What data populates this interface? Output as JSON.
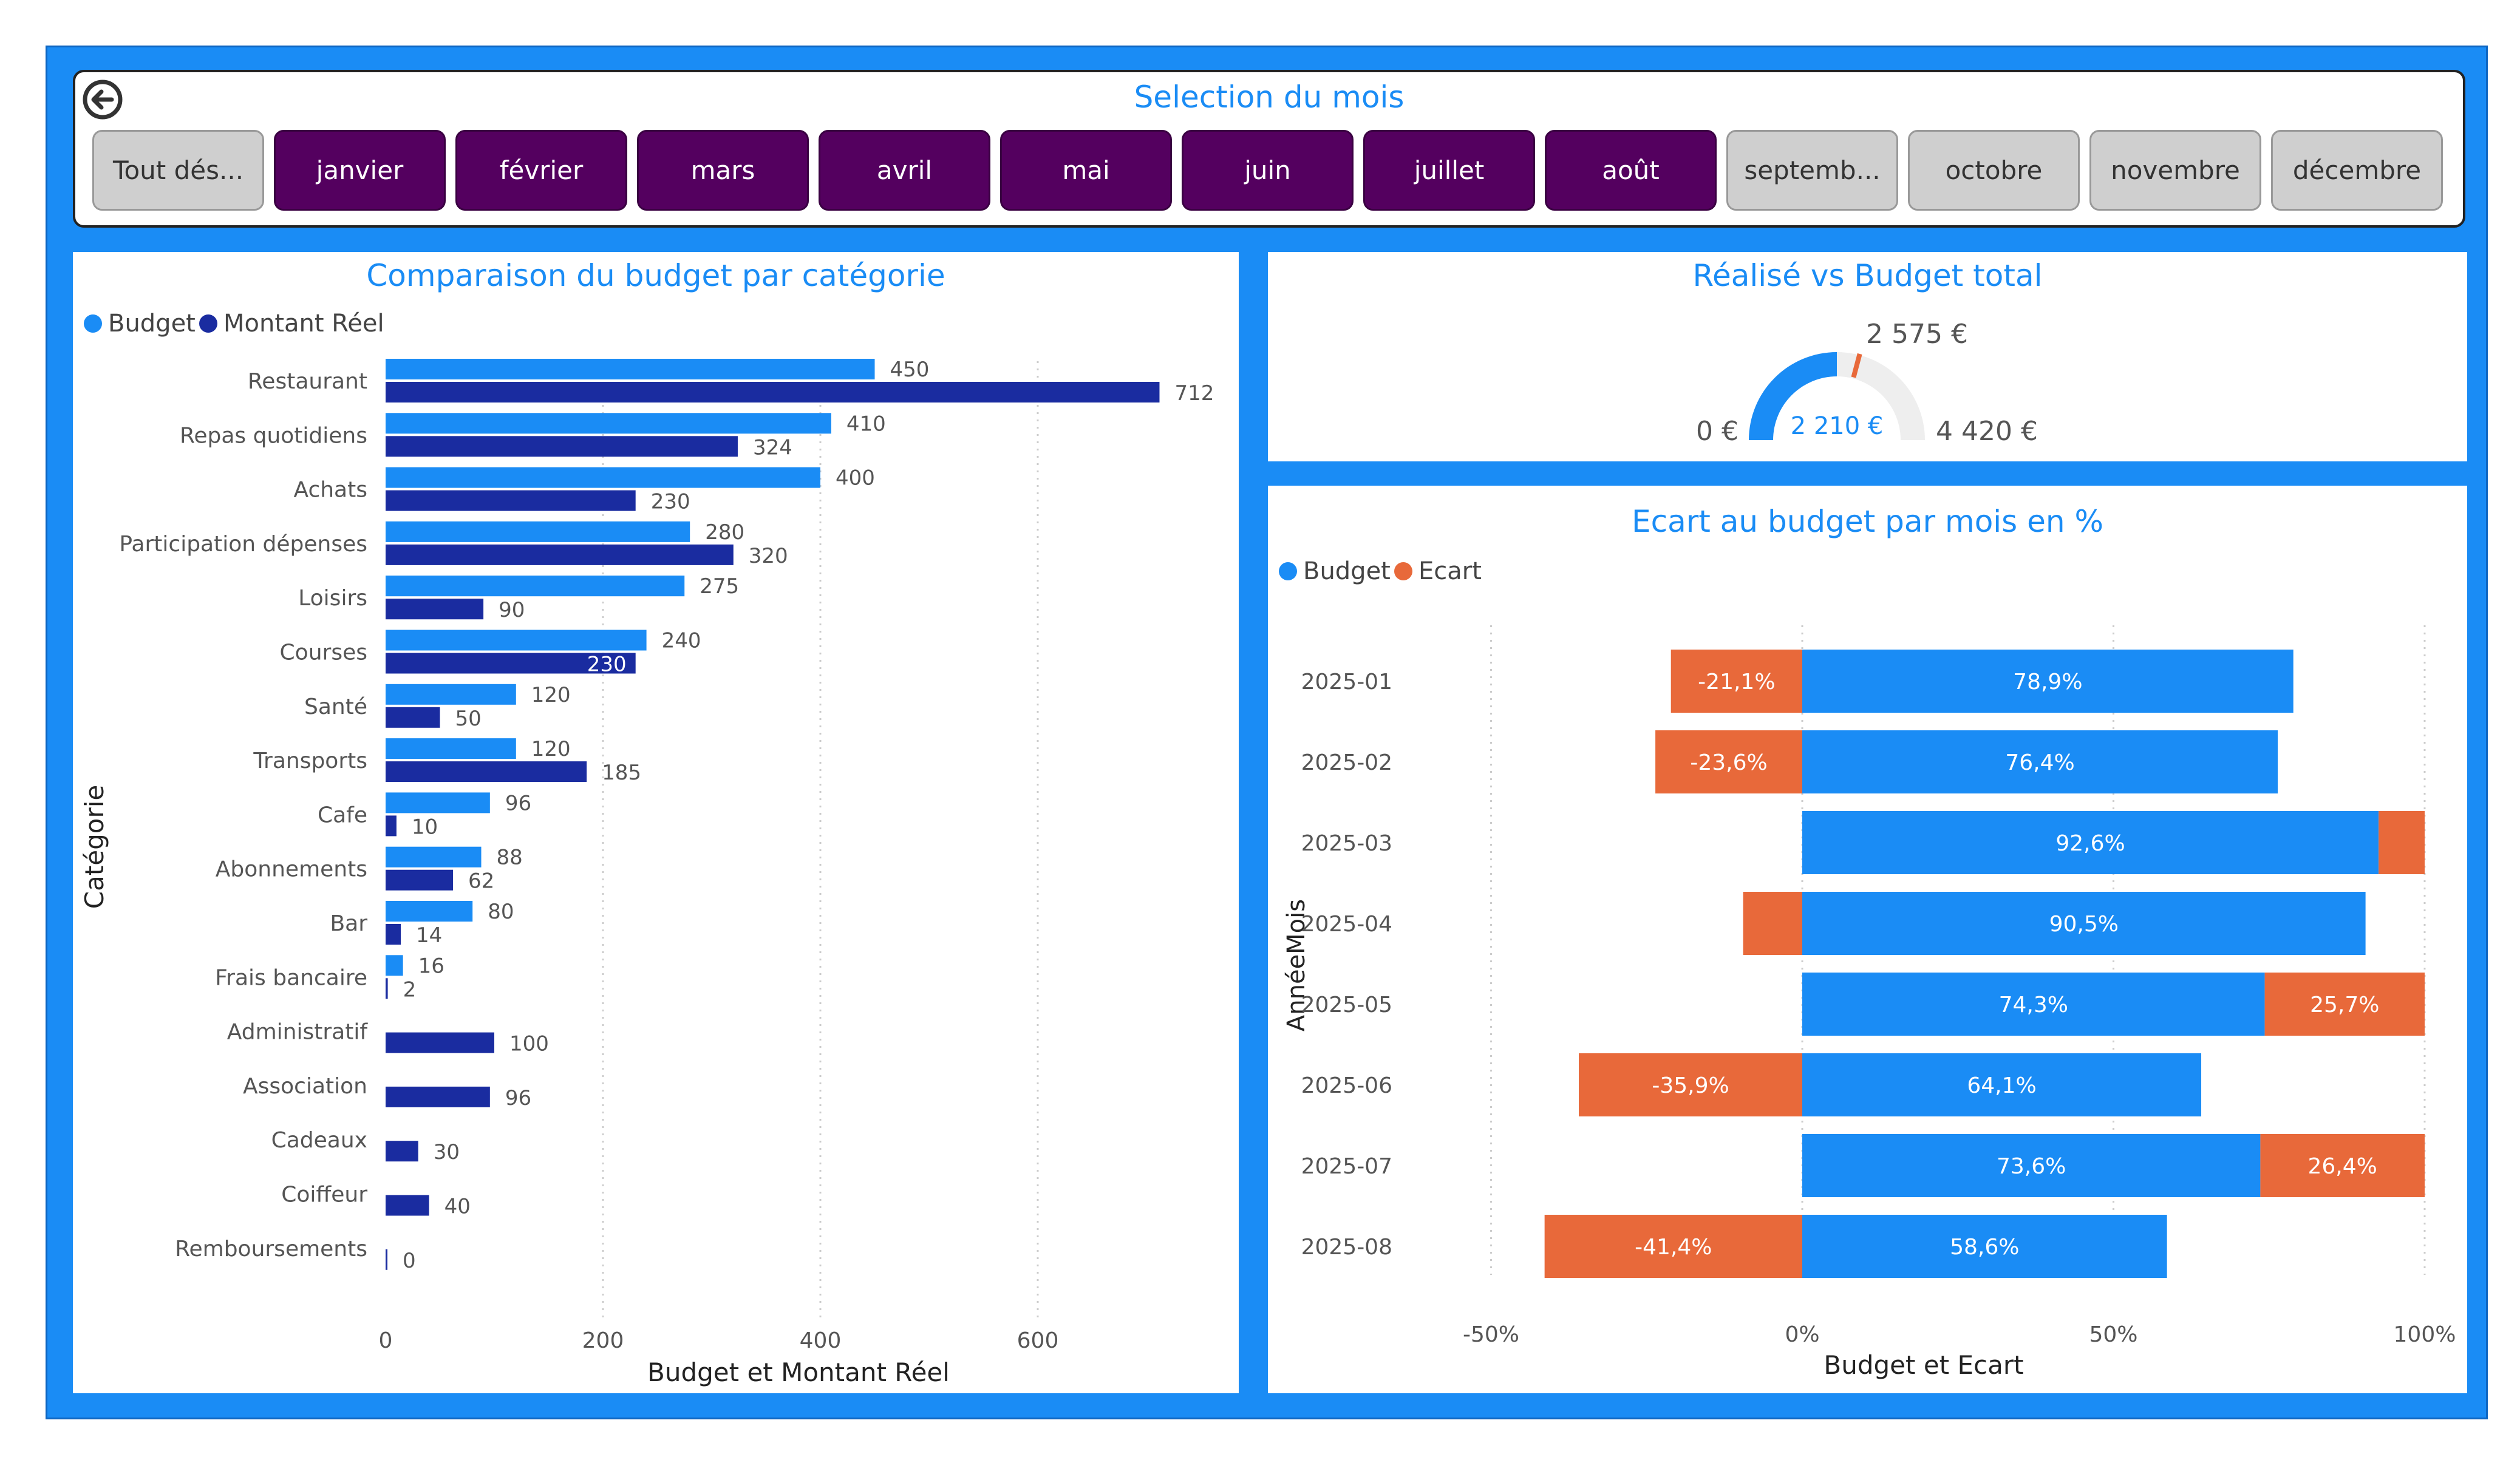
{
  "colors": {
    "frame": "#1a8cf5",
    "title": "#1a8cf5",
    "budget_light": "#1a8cf5",
    "montant_reel": "#1a2ca0",
    "ecart": "#e8693a",
    "slicer_selected": "#54005f",
    "slicer_unselected": "#cfcfcf",
    "gauge_track": "#eeeeee",
    "gauge_target": "#e8693a"
  },
  "slicer": {
    "title": "Selection du mois",
    "back_icon": "back-arrow-icon",
    "buttons": [
      {
        "label": "Tout dés...",
        "selected": false
      },
      {
        "label": "janvier",
        "selected": true
      },
      {
        "label": "février",
        "selected": true
      },
      {
        "label": "mars",
        "selected": true
      },
      {
        "label": "avril",
        "selected": true
      },
      {
        "label": "mai",
        "selected": true
      },
      {
        "label": "juin",
        "selected": true
      },
      {
        "label": "juillet",
        "selected": true
      },
      {
        "label": "août",
        "selected": true
      },
      {
        "label": "septemb...",
        "selected": false
      },
      {
        "label": "octobre",
        "selected": false
      },
      {
        "label": "novembre",
        "selected": false
      },
      {
        "label": "décembre",
        "selected": false
      }
    ]
  },
  "left_chart": {
    "title": "Comparaison du budget par catégorie",
    "legend": [
      "Budget",
      "Montant Réel"
    ]
  },
  "gauge": {
    "title": "Réalisé vs Budget total",
    "value_label": "2 210 €",
    "min_label": "0 €",
    "max_label": "4 420 €",
    "target_label": "2 575 €"
  },
  "right_chart": {
    "title": "Ecart au budget par mois en %",
    "legend": [
      "Budget",
      "Ecart"
    ]
  },
  "chart_data": [
    {
      "type": "bar",
      "orientation": "horizontal",
      "title": "Comparaison du budget par catégorie",
      "xlabel": "Budget et Montant Réel",
      "ylabel": "Catégorie",
      "xlim": [
        0,
        780
      ],
      "xticks": [
        "0",
        "200",
        "400",
        "600"
      ],
      "legend_position": "top-left",
      "grid": true,
      "categories": [
        "Restaurant",
        "Repas quotidiens",
        "Achats",
        "Participation dépenses",
        "Loisirs",
        "Courses",
        "Santé",
        "Transports",
        "Cafe",
        "Abonnements",
        "Bar",
        "Frais bancaire",
        "Administratif",
        "Association",
        "Cadeaux",
        "Coiffeur",
        "Remboursements"
      ],
      "series": [
        {
          "name": "Budget",
          "values": [
            450,
            410,
            400,
            280,
            275,
            240,
            120,
            120,
            96,
            88,
            80,
            16,
            null,
            null,
            null,
            null,
            null
          ]
        },
        {
          "name": "Montant Réel",
          "values": [
            712,
            324,
            230,
            320,
            90,
            230,
            50,
            185,
            10,
            62,
            14,
            2,
            100,
            96,
            30,
            40,
            0
          ]
        }
      ]
    },
    {
      "type": "gauge",
      "title": "Réalisé vs Budget total",
      "value": 2210,
      "min": 0,
      "max": 4420,
      "target": 2575
    },
    {
      "type": "bar",
      "orientation": "horizontal",
      "stacked": true,
      "title": "Ecart au budget par mois en %",
      "xlabel": "Budget et Ecart",
      "ylabel": "AnnéeMois",
      "xlim": [
        -50,
        100
      ],
      "xticks": [
        "-50%",
        "0%",
        "50%",
        "100%"
      ],
      "legend_position": "top-left",
      "grid": true,
      "categories": [
        "2025-01",
        "2025-02",
        "2025-03",
        "2025-04",
        "2025-05",
        "2025-06",
        "2025-07",
        "2025-08"
      ],
      "series": [
        {
          "name": "Budget",
          "values": [
            78.9,
            76.4,
            92.6,
            90.5,
            74.3,
            64.1,
            73.6,
            58.6
          ],
          "labels": [
            "78,9%",
            "76,4%",
            "92,6%",
            "90,5%",
            "74,3%",
            "64,1%",
            "73,6%",
            "58,6%"
          ]
        },
        {
          "name": "Ecart",
          "values": [
            -21.1,
            -23.6,
            7.4,
            -9.5,
            25.7,
            -35.9,
            26.4,
            -41.4
          ],
          "labels": [
            "-21,1%",
            "-23,6%",
            "",
            "",
            "25,7%",
            "-35,9%",
            "26,4%",
            "-41,4%"
          ]
        }
      ]
    }
  ]
}
